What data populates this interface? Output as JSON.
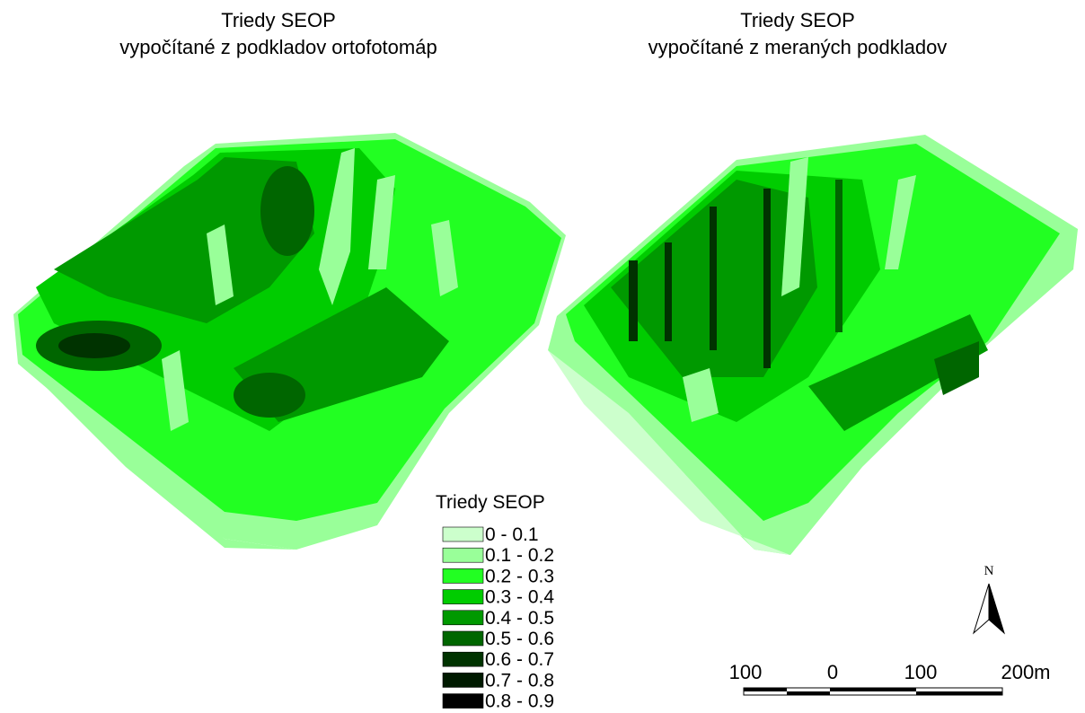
{
  "maps": [
    {
      "title_line1": "Triedy SEOP",
      "title_line2": "vypočítané z podkladov ortofotomáp"
    },
    {
      "title_line1": "Triedy SEOP",
      "title_line2": "vypočítané z meraných podkladov"
    }
  ],
  "legend": {
    "title": "Triedy SEOP",
    "classes": [
      {
        "label": "0 - 0.1",
        "color": "#ccffcc"
      },
      {
        "label": "0.1 - 0.2",
        "color": "#99ff99"
      },
      {
        "label": "0.2 - 0.3",
        "color": "#22ff22"
      },
      {
        "label": "0.3 - 0.4",
        "color": "#00cc00"
      },
      {
        "label": "0.4 - 0.5",
        "color": "#009900"
      },
      {
        "label": "0.5 - 0.6",
        "color": "#006600"
      },
      {
        "label": "0.6 - 0.7",
        "color": "#003300"
      },
      {
        "label": "0.7 - 0.8",
        "color": "#001a00"
      },
      {
        "label": "0.8 - 0.9",
        "color": "#000000"
      }
    ]
  },
  "north_arrow": {
    "label": "N"
  },
  "scale_bar": {
    "labels": [
      "100",
      "0",
      "100",
      "200m"
    ]
  }
}
